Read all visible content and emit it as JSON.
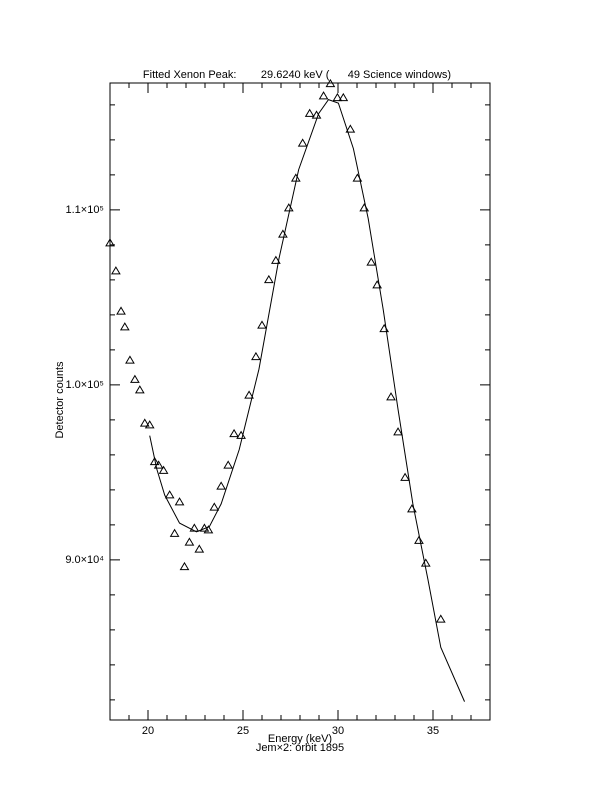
{
  "chart_data": {
    "type": "scatter",
    "title": "Fitted Xenon Peak:        29.6240 keV (      49 Science windows)",
    "x_label": "Energy (keV)",
    "subtitle": "Jem×2: orbit 1895",
    "y_label": "Detector counts",
    "xlim": [
      18,
      38
    ],
    "ylim": [
      80850,
      117250
    ],
    "xticks": [
      20,
      25,
      30,
      35
    ],
    "yticks": [
      {
        "value": 90000,
        "label": "9.0×10⁴"
      },
      {
        "value": 100000,
        "label": "1.0×10⁵"
      },
      {
        "value": 110000,
        "label": "1.1×10⁵"
      }
    ],
    "xminorticks": [
      18,
      19,
      21,
      22,
      23,
      24,
      26,
      27,
      28,
      29,
      31,
      32,
      33,
      34,
      36,
      37,
      38
    ],
    "yminorticks": [
      82000,
      84000,
      86000,
      88000,
      92000,
      94000,
      96000,
      98000,
      102000,
      104000,
      106000,
      108000,
      112000,
      114000,
      116000
    ],
    "grid": false,
    "series": [
      {
        "marker": "triangle",
        "color": "#000000",
        "x": [
          18.0,
          18.31,
          18.58,
          18.78,
          19.05,
          19.31,
          19.57,
          19.83,
          20.09,
          20.35,
          20.56,
          20.82,
          21.14,
          21.4,
          21.66,
          21.92,
          22.18,
          22.44,
          22.7,
          22.97,
          23.18,
          23.49,
          23.85,
          24.22,
          24.53,
          24.9,
          25.32,
          25.68,
          26.0,
          26.36,
          26.73,
          27.1,
          27.41,
          27.78,
          28.14,
          28.51,
          28.87,
          29.24,
          29.6,
          29.97,
          30.28,
          30.65,
          31.02,
          31.38,
          31.75,
          32.06,
          32.43,
          32.79,
          33.16,
          33.53,
          33.89,
          34.26,
          34.62,
          35.41
        ],
        "values": [
          108100,
          106500,
          104200,
          103300,
          101400,
          100300,
          99700,
          97800,
          97700,
          95600,
          95400,
          95100,
          93700,
          91500,
          93300,
          89600,
          91000,
          91800,
          90600,
          91800,
          91700,
          93000,
          94200,
          95400,
          97200,
          97100,
          99400,
          101600,
          103400,
          106000,
          107100,
          108600,
          110100,
          111800,
          113800,
          115500,
          115400,
          116500,
          117200,
          116400,
          116400,
          114600,
          111800,
          110100,
          107000,
          105700,
          103200,
          99300,
          97300,
          94700,
          92900,
          91100,
          89800,
          86600
        ]
      },
      {
        "marker": "line",
        "color": "#000000",
        "x": [
          20.09,
          20.46,
          20.88,
          21.66,
          22.55,
          23.23,
          23.85,
          24.8,
          25.84,
          26.89,
          27.93,
          28.98,
          29.5,
          30.02,
          30.81,
          31.59,
          32.38,
          33.16,
          33.94,
          34.73,
          35.41,
          36.66
        ],
        "values": [
          97100,
          95200,
          93700,
          92100,
          91600,
          91900,
          93200,
          96300,
          100900,
          107200,
          112300,
          115500,
          116300,
          116100,
          113500,
          109500,
          104300,
          98600,
          93200,
          88900,
          85000,
          81900
        ]
      }
    ]
  }
}
